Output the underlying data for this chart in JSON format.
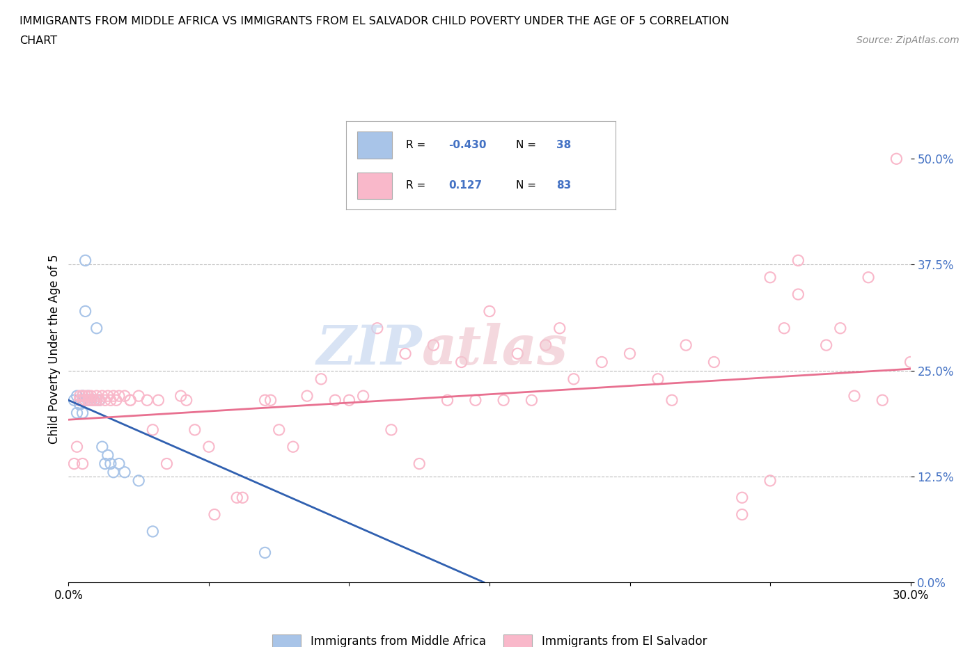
{
  "title_line1": "IMMIGRANTS FROM MIDDLE AFRICA VS IMMIGRANTS FROM EL SALVADOR CHILD POVERTY UNDER THE AGE OF 5 CORRELATION",
  "title_line2": "CHART",
  "source_text": "Source: ZipAtlas.com",
  "ylabel": "Child Poverty Under the Age of 5",
  "xlim": [
    0.0,
    0.3
  ],
  "ylim": [
    0.0,
    0.55
  ],
  "yticks": [
    0.0,
    0.125,
    0.25,
    0.375,
    0.5
  ],
  "ytick_labels": [
    "0.0%",
    "12.5%",
    "25.0%",
    "37.5%",
    "50.0%"
  ],
  "xtick_labels_show": {
    "0.0": "0.0%",
    "0.3": "30.0%"
  },
  "hlines": [
    0.125,
    0.25,
    0.375
  ],
  "blue_R": -0.43,
  "blue_N": 38,
  "pink_R": 0.127,
  "pink_N": 83,
  "legend_label_blue": "Immigrants from Middle Africa",
  "legend_label_pink": "Immigrants from El Salvador",
  "blue_color": "#a8c4e8",
  "pink_color": "#f9b8ca",
  "blue_line_color": "#3060b0",
  "pink_line_color": "#e87090",
  "watermark_zip_color": "#c8d8f0",
  "watermark_atlas_color": "#f0c8d0",
  "blue_scatter_x": [
    0.002,
    0.003,
    0.003,
    0.004,
    0.004,
    0.004,
    0.005,
    0.005,
    0.005,
    0.005,
    0.006,
    0.006,
    0.006,
    0.006,
    0.006,
    0.007,
    0.007,
    0.007,
    0.007,
    0.008,
    0.008,
    0.008,
    0.009,
    0.009,
    0.01,
    0.01,
    0.011,
    0.011,
    0.012,
    0.013,
    0.014,
    0.015,
    0.016,
    0.018,
    0.02,
    0.025,
    0.03,
    0.07
  ],
  "blue_scatter_y": [
    0.215,
    0.22,
    0.2,
    0.21,
    0.215,
    0.21,
    0.22,
    0.2,
    0.215,
    0.22,
    0.38,
    0.215,
    0.215,
    0.215,
    0.32,
    0.215,
    0.22,
    0.215,
    0.215,
    0.215,
    0.215,
    0.215,
    0.215,
    0.215,
    0.3,
    0.215,
    0.215,
    0.215,
    0.16,
    0.14,
    0.15,
    0.14,
    0.13,
    0.14,
    0.13,
    0.12,
    0.06,
    0.035
  ],
  "pink_scatter_x": [
    0.002,
    0.003,
    0.004,
    0.004,
    0.005,
    0.005,
    0.005,
    0.006,
    0.006,
    0.007,
    0.007,
    0.008,
    0.008,
    0.009,
    0.01,
    0.01,
    0.011,
    0.012,
    0.013,
    0.014,
    0.015,
    0.016,
    0.017,
    0.018,
    0.02,
    0.022,
    0.025,
    0.028,
    0.03,
    0.035,
    0.04,
    0.045,
    0.05,
    0.06,
    0.07,
    0.075,
    0.08,
    0.085,
    0.09,
    0.095,
    0.1,
    0.11,
    0.12,
    0.13,
    0.14,
    0.15,
    0.16,
    0.17,
    0.175,
    0.18,
    0.19,
    0.2,
    0.21,
    0.22,
    0.23,
    0.24,
    0.25,
    0.255,
    0.26,
    0.27,
    0.275,
    0.28,
    0.285,
    0.29,
    0.295,
    0.3,
    0.24,
    0.25,
    0.26,
    0.215,
    0.165,
    0.155,
    0.145,
    0.135,
    0.125,
    0.115,
    0.105,
    0.072,
    0.062,
    0.052,
    0.042,
    0.032,
    0.022
  ],
  "pink_scatter_y": [
    0.14,
    0.16,
    0.215,
    0.22,
    0.215,
    0.22,
    0.14,
    0.215,
    0.22,
    0.215,
    0.22,
    0.215,
    0.22,
    0.215,
    0.215,
    0.22,
    0.215,
    0.22,
    0.215,
    0.22,
    0.215,
    0.22,
    0.215,
    0.22,
    0.22,
    0.215,
    0.22,
    0.215,
    0.18,
    0.14,
    0.22,
    0.18,
    0.16,
    0.1,
    0.215,
    0.18,
    0.16,
    0.22,
    0.24,
    0.215,
    0.215,
    0.3,
    0.27,
    0.28,
    0.26,
    0.32,
    0.27,
    0.28,
    0.3,
    0.24,
    0.26,
    0.27,
    0.24,
    0.28,
    0.26,
    0.1,
    0.36,
    0.3,
    0.38,
    0.28,
    0.3,
    0.22,
    0.36,
    0.215,
    0.5,
    0.26,
    0.08,
    0.12,
    0.34,
    0.215,
    0.215,
    0.215,
    0.215,
    0.215,
    0.14,
    0.18,
    0.22,
    0.215,
    0.1,
    0.08,
    0.215,
    0.215,
    0.215
  ]
}
